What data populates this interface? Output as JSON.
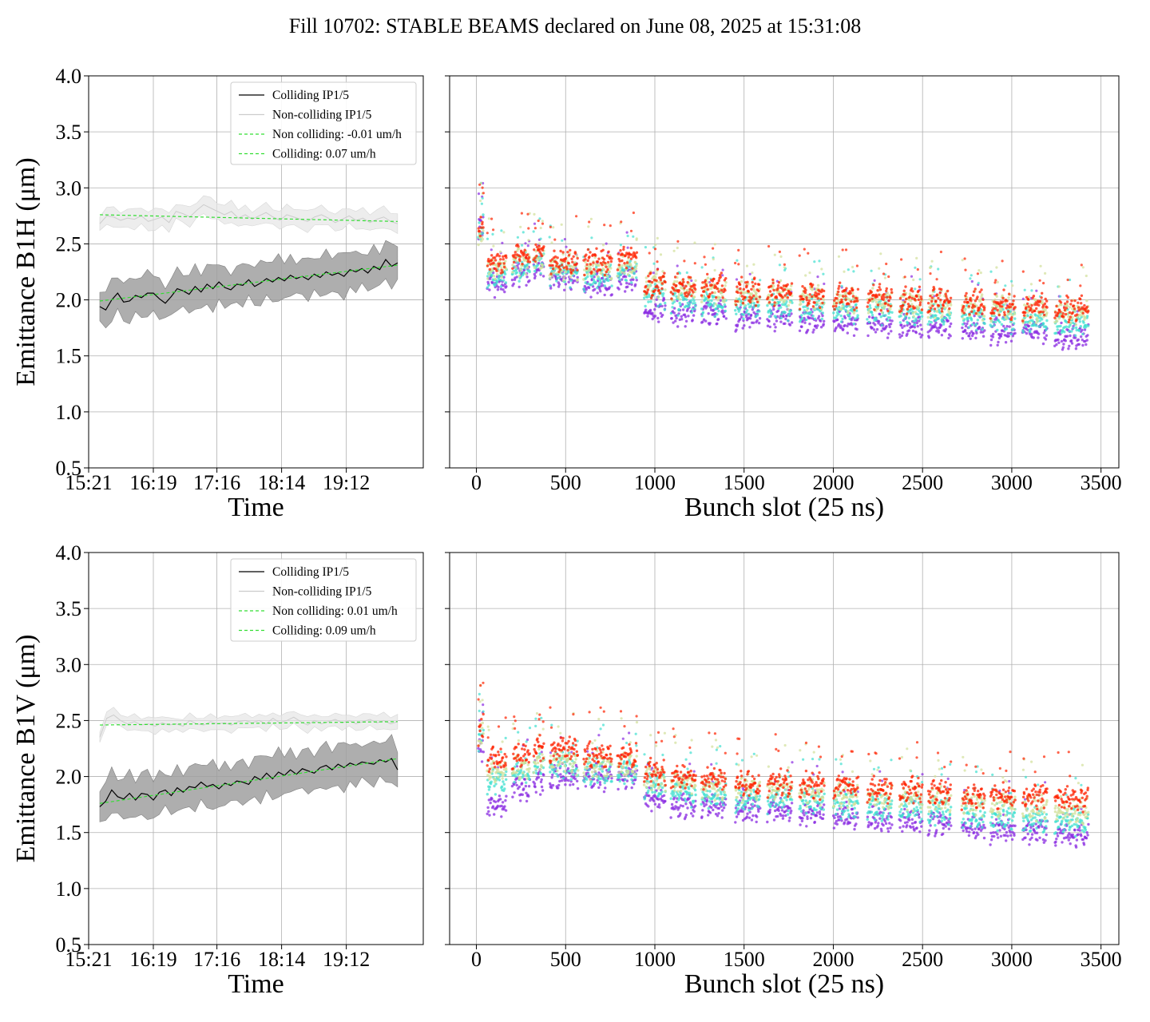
{
  "title": "Fill 10702: STABLE BEAMS declared on June 08, 2025 at 15:31:08",
  "chart_data": [
    {
      "type": "line",
      "id": "b1h-time",
      "xlabel": "Time",
      "ylabel": "Emittance B1H (μm)",
      "x_ticks": [
        "15:21",
        "16:19",
        "17:16",
        "18:14",
        "19:12"
      ],
      "ylim": [
        0.5,
        4.0
      ],
      "y_ticks": [
        "0.5",
        "1.0",
        "1.5",
        "2.0",
        "2.5",
        "3.0",
        "3.5",
        "4.0"
      ],
      "grid": true,
      "legend_position": "top-right",
      "time_range": [
        "15:31",
        "19:58"
      ],
      "series": [
        {
          "name": "Colliding IP1/5",
          "color": "#000000",
          "style": "solid",
          "values": [
            1.94,
            1.91,
            2.0,
            2.06,
            1.98,
            1.99,
            2.04,
            2.02,
            2.06,
            2.06,
            2.01,
            1.97,
            2.03,
            2.1,
            2.08,
            2.05,
            2.12,
            2.07,
            2.14,
            2.1,
            2.16,
            2.11,
            2.09,
            2.14,
            2.13,
            2.18,
            2.12,
            2.15,
            2.19,
            2.16,
            2.2,
            2.17,
            2.22,
            2.19,
            2.21,
            2.18,
            2.23,
            2.2,
            2.25,
            2.22,
            2.24,
            2.21,
            2.27,
            2.25,
            2.28,
            2.24,
            2.3,
            2.27,
            2.36,
            2.3,
            2.33
          ],
          "band_width": 0.17
        },
        {
          "name": "Non-colliding IP1/5",
          "color": "#cccccc",
          "style": "solid",
          "values": [
            2.68,
            2.75,
            2.74,
            2.71,
            2.73,
            2.72,
            2.75,
            2.7,
            2.72,
            2.74,
            2.69,
            2.79,
            2.77,
            2.74,
            2.8,
            2.85,
            2.82,
            2.79,
            2.76,
            2.79,
            2.73,
            2.76,
            2.72,
            2.75,
            2.78,
            2.74,
            2.71,
            2.76,
            2.74,
            2.72,
            2.7,
            2.74,
            2.76,
            2.73,
            2.69,
            2.72,
            2.75,
            2.71,
            2.73,
            2.69,
            2.72,
            2.74,
            2.7,
            2.68
          ],
          "band_width": 0.08
        },
        {
          "name": "Non colliding: -0.01 um/h",
          "color": "#33dd33",
          "style": "dashed",
          "start": 2.76,
          "end": 2.7
        },
        {
          "name": "Colliding: 0.07 um/h",
          "color": "#33dd33",
          "style": "dashed",
          "start": 1.99,
          "end": 2.31
        }
      ]
    },
    {
      "type": "scatter",
      "id": "b1h-bunch",
      "xlabel": "Bunch slot (25 ns)",
      "x_ticks": [
        "0",
        "500",
        "1000",
        "1500",
        "2000",
        "2500",
        "3000",
        "3500"
      ],
      "xlim": [
        -150,
        3600
      ],
      "ylim": [
        0.5,
        4.0
      ],
      "grid": true,
      "colors": [
        "#8a2be2",
        "#40e0d0",
        "#d2e09a",
        "#ff2200"
      ],
      "trains": [
        {
          "start": 10,
          "end": 40,
          "levels": [
            2.65,
            2.65,
            2.65,
            2.65
          ],
          "spread": 0.12
        },
        {
          "start": 60,
          "end": 170,
          "levels": [
            2.15,
            2.2,
            2.3,
            2.35
          ]
        },
        {
          "start": 200,
          "end": 300,
          "levels": [
            2.25,
            2.3,
            2.35,
            2.4
          ]
        },
        {
          "start": 320,
          "end": 380,
          "levels": [
            2.3,
            2.35,
            2.4,
            2.45
          ]
        },
        {
          "start": 410,
          "end": 570,
          "levels": [
            2.2,
            2.25,
            2.3,
            2.35
          ]
        },
        {
          "start": 600,
          "end": 760,
          "levels": [
            2.15,
            2.2,
            2.3,
            2.35
          ]
        },
        {
          "start": 790,
          "end": 900,
          "levels": [
            2.2,
            2.25,
            2.3,
            2.38
          ]
        },
        {
          "start": 940,
          "end": 1060,
          "levels": [
            1.92,
            2.05,
            2.15,
            2.15
          ]
        },
        {
          "start": 1090,
          "end": 1230,
          "levels": [
            1.88,
            2.0,
            2.1,
            2.12
          ]
        },
        {
          "start": 1260,
          "end": 1400,
          "levels": [
            1.88,
            1.98,
            2.08,
            2.12
          ]
        },
        {
          "start": 1450,
          "end": 1590,
          "levels": [
            1.85,
            1.95,
            2.05,
            2.08
          ]
        },
        {
          "start": 1630,
          "end": 1770,
          "levels": [
            1.85,
            1.95,
            2.05,
            2.08
          ]
        },
        {
          "start": 1810,
          "end": 1950,
          "levels": [
            1.83,
            1.93,
            2.03,
            2.05
          ]
        },
        {
          "start": 2000,
          "end": 2140,
          "levels": [
            1.82,
            1.92,
            2.0,
            2.03
          ]
        },
        {
          "start": 2190,
          "end": 2330,
          "levels": [
            1.8,
            1.9,
            2.0,
            2.02
          ]
        },
        {
          "start": 2370,
          "end": 2500,
          "levels": [
            1.78,
            1.88,
            1.98,
            2.0
          ]
        },
        {
          "start": 2530,
          "end": 2660,
          "levels": [
            1.78,
            1.88,
            1.97,
            2.0
          ]
        },
        {
          "start": 2720,
          "end": 2850,
          "levels": [
            1.75,
            1.85,
            1.95,
            1.98
          ]
        },
        {
          "start": 2880,
          "end": 3020,
          "levels": [
            1.73,
            1.83,
            1.93,
            1.96
          ]
        },
        {
          "start": 3060,
          "end": 3200,
          "levels": [
            1.72,
            1.82,
            1.92,
            1.95
          ]
        },
        {
          "start": 3240,
          "end": 3430,
          "levels": [
            1.68,
            1.8,
            1.9,
            1.93
          ]
        }
      ]
    },
    {
      "type": "line",
      "id": "b1v-time",
      "xlabel": "Time",
      "ylabel": "Emittance B1V (μm)",
      "x_ticks": [
        "15:21",
        "16:19",
        "17:16",
        "18:14",
        "19:12"
      ],
      "ylim": [
        0.5,
        4.0
      ],
      "y_ticks": [
        "0.5",
        "1.0",
        "1.5",
        "2.0",
        "2.5",
        "3.0",
        "3.5",
        "4.0"
      ],
      "grid": true,
      "legend_position": "top-right",
      "time_range": [
        "15:31",
        "19:58"
      ],
      "series": [
        {
          "name": "Colliding IP1/5",
          "color": "#000000",
          "style": "solid",
          "values": [
            1.73,
            1.78,
            1.88,
            1.82,
            1.8,
            1.85,
            1.79,
            1.85,
            1.84,
            1.79,
            1.86,
            1.88,
            1.83,
            1.9,
            1.86,
            1.91,
            1.9,
            1.95,
            1.91,
            1.93,
            1.89,
            1.94,
            1.92,
            1.96,
            1.95,
            1.93,
            2.0,
            1.97,
            2.03,
            1.98,
            2.04,
            2.01,
            2.06,
            2.02,
            2.07,
            2.05,
            2.03,
            2.08,
            2.1,
            2.06,
            2.11,
            2.08,
            2.12,
            2.1,
            2.13,
            2.12,
            2.11,
            2.15,
            2.13,
            2.16,
            2.06
          ],
          "band_width": 0.18
        },
        {
          "name": "Non-colliding IP1/5",
          "color": "#cccccc",
          "style": "solid",
          "values": [
            2.35,
            2.52,
            2.55,
            2.5,
            2.47,
            2.49,
            2.46,
            2.47,
            2.45,
            2.48,
            2.46,
            2.47,
            2.45,
            2.5,
            2.47,
            2.46,
            2.49,
            2.47,
            2.48,
            2.46,
            2.49,
            2.5,
            2.48,
            2.5,
            2.47,
            2.52,
            2.48,
            2.5,
            2.53,
            2.49,
            2.46,
            2.5,
            2.47,
            2.49,
            2.51,
            2.48,
            2.5,
            2.47,
            2.49,
            2.51,
            2.48,
            2.5,
            2.47,
            2.49
          ],
          "band_width": 0.06
        },
        {
          "name": "Non colliding: 0.01 um/h",
          "color": "#33dd33",
          "style": "dashed",
          "start": 2.46,
          "end": 2.49
        },
        {
          "name": "Colliding: 0.09 um/h",
          "color": "#33dd33",
          "style": "dashed",
          "start": 1.76,
          "end": 2.16
        }
      ]
    },
    {
      "type": "scatter",
      "id": "b1v-bunch",
      "xlabel": "Bunch slot (25 ns)",
      "x_ticks": [
        "0",
        "500",
        "1000",
        "1500",
        "2000",
        "2500",
        "3000",
        "3500"
      ],
      "xlim": [
        -150,
        3600
      ],
      "ylim": [
        0.5,
        4.0
      ],
      "grid": true,
      "colors": [
        "#8a2be2",
        "#40e0d0",
        "#d2e09a",
        "#ff2200"
      ],
      "trains": [
        {
          "start": 10,
          "end": 40,
          "levels": [
            2.25,
            2.35,
            2.4,
            2.45
          ],
          "spread": 0.12
        },
        {
          "start": 60,
          "end": 170,
          "levels": [
            1.75,
            1.95,
            2.05,
            2.15
          ]
        },
        {
          "start": 200,
          "end": 300,
          "levels": [
            1.9,
            2.05,
            2.1,
            2.2
          ]
        },
        {
          "start": 320,
          "end": 380,
          "levels": [
            1.95,
            2.1,
            2.15,
            2.25
          ]
        },
        {
          "start": 410,
          "end": 570,
          "levels": [
            2.0,
            2.1,
            2.15,
            2.25
          ]
        },
        {
          "start": 600,
          "end": 760,
          "levels": [
            2.0,
            2.05,
            2.1,
            2.2
          ]
        },
        {
          "start": 790,
          "end": 900,
          "levels": [
            2.0,
            2.05,
            2.1,
            2.2
          ]
        },
        {
          "start": 940,
          "end": 1060,
          "levels": [
            1.8,
            1.92,
            2.0,
            2.05
          ]
        },
        {
          "start": 1090,
          "end": 1230,
          "levels": [
            1.75,
            1.85,
            1.95,
            2.0
          ]
        },
        {
          "start": 1260,
          "end": 1400,
          "levels": [
            1.75,
            1.85,
            1.92,
            1.98
          ]
        },
        {
          "start": 1450,
          "end": 1590,
          "levels": [
            1.7,
            1.8,
            1.9,
            1.95
          ]
        },
        {
          "start": 1630,
          "end": 1770,
          "levels": [
            1.7,
            1.8,
            1.9,
            1.95
          ]
        },
        {
          "start": 1810,
          "end": 1950,
          "levels": [
            1.68,
            1.78,
            1.87,
            1.93
          ]
        },
        {
          "start": 2000,
          "end": 2140,
          "levels": [
            1.65,
            1.75,
            1.85,
            1.92
          ]
        },
        {
          "start": 2190,
          "end": 2330,
          "levels": [
            1.63,
            1.73,
            1.83,
            1.9
          ]
        },
        {
          "start": 2370,
          "end": 2500,
          "levels": [
            1.6,
            1.72,
            1.82,
            1.88
          ]
        },
        {
          "start": 2530,
          "end": 2660,
          "levels": [
            1.6,
            1.7,
            1.8,
            1.87
          ]
        },
        {
          "start": 2720,
          "end": 2850,
          "levels": [
            1.55,
            1.66,
            1.77,
            1.84
          ]
        },
        {
          "start": 2880,
          "end": 3020,
          "levels": [
            1.53,
            1.64,
            1.75,
            1.83
          ]
        },
        {
          "start": 3060,
          "end": 3200,
          "levels": [
            1.52,
            1.63,
            1.73,
            1.82
          ]
        },
        {
          "start": 3240,
          "end": 3430,
          "levels": [
            1.48,
            1.6,
            1.7,
            1.8
          ]
        }
      ]
    }
  ]
}
